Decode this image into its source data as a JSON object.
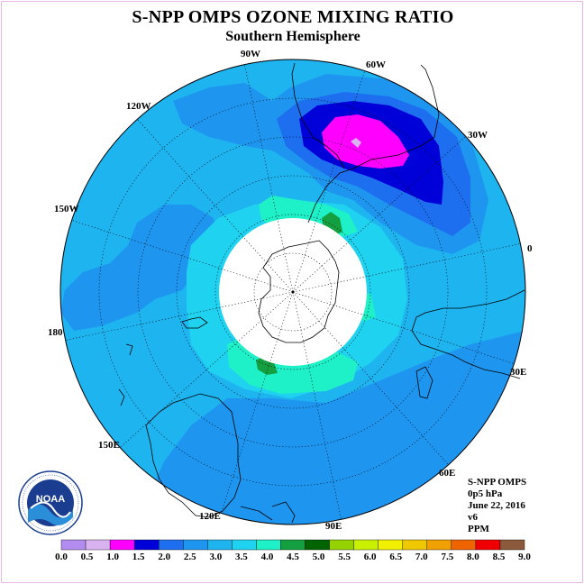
{
  "title": "S-NPP OMPS OZONE MIXING RATIO",
  "subtitle": "Southern Hemisphere",
  "longitude_labels": {
    "lon_90w": "90W",
    "lon_60w": "60W",
    "lon_30w": "30W",
    "lon_0": "0",
    "lon_30e": "30E",
    "lon_60e": "60E",
    "lon_90e": "90E",
    "lon_120e": "120E",
    "lon_150e": "150E",
    "lon_180": "180",
    "lon_150w": "150W",
    "lon_120w": "120W"
  },
  "info": {
    "instrument": "S-NPP OMPS",
    "level": "0p5 hPa",
    "date": "June 22, 2016",
    "version": "v6",
    "units": "PPM"
  },
  "logo": {
    "text": "NOAA",
    "ring_text": "NATIONAL OCEANIC AND ATMOSPHERIC ADMINISTRATION · U.S. DEPARTMENT OF COMMERCE"
  },
  "colorbar": {
    "labels": [
      "0.0",
      "0.5",
      "1.0",
      "1.5",
      "2.0",
      "2.5",
      "3.0",
      "3.5",
      "4.0",
      "4.5",
      "5.0",
      "5.5",
      "6.0",
      "6.5",
      "7.0",
      "7.5",
      "8.0",
      "8.5",
      "9.0"
    ],
    "colors": [
      "#b38cf0",
      "#d9b3f0",
      "#ff00ff",
      "#0000d8",
      "#1e6ef0",
      "#1e96f0",
      "#1eb4f0",
      "#1ed2f0",
      "#1ef0c8",
      "#14a040",
      "#006400",
      "#96d200",
      "#c8f000",
      "#f0f000",
      "#f0c800",
      "#f0a000",
      "#f06400",
      "#f00000",
      "#8b5a3c"
    ]
  },
  "colors": {
    "background_field": "#1eb4f0",
    "pole_mask": "#ffffff"
  }
}
